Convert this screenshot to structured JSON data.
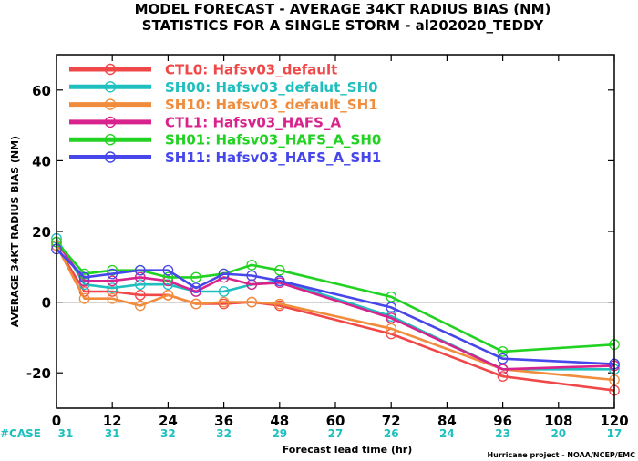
{
  "chart_data": {
    "type": "line",
    "title": "MODEL FORECAST - AVERAGE 34KT RADIUS BIAS (NM)",
    "subtitle": "STATISTICS FOR A SINGLE STORM - al202020_TEDDY",
    "xlabel": "Forecast lead time (hr)",
    "ylabel": "AVERAGE 34KT RADIUS BIAS (NM)",
    "xlim": [
      0,
      120
    ],
    "ylim": [
      -30,
      70
    ],
    "xticks": [
      0,
      12,
      24,
      36,
      48,
      60,
      72,
      84,
      96,
      108,
      120
    ],
    "yticks": [
      -20,
      0,
      20,
      40,
      60
    ],
    "zero_line": true,
    "legend_position": "top-left",
    "case_label": "#CASE",
    "case_counts": [
      {
        "x": 0,
        "label": "31"
      },
      {
        "x": 12,
        "label": "31"
      },
      {
        "x": 24,
        "label": "32"
      },
      {
        "x": 36,
        "label": "32"
      },
      {
        "x": 48,
        "label": "29"
      },
      {
        "x": 60,
        "label": "27"
      },
      {
        "x": 72,
        "label": "26"
      },
      {
        "x": 84,
        "label": "24"
      },
      {
        "x": 96,
        "label": "23"
      },
      {
        "x": 108,
        "label": "20"
      },
      {
        "x": 120,
        "label": "17"
      }
    ],
    "credit": "Hurricane project - NOAA/NCEP/EMC",
    "series": [
      {
        "name": "CTL0: Hafsv03_default",
        "color": "#f04848",
        "x": [
          0,
          6,
          12,
          18,
          24,
          30,
          36,
          42,
          48,
          72,
          96,
          120
        ],
        "y": [
          16,
          3,
          3,
          2,
          2,
          -0.5,
          -0.5,
          0,
          -1,
          -9,
          -21,
          -25
        ]
      },
      {
        "name": "SH00: Hafsv03_defalut_SH0",
        "color": "#1fbfbf",
        "x": [
          0,
          6,
          12,
          18,
          24,
          30,
          36,
          42,
          48,
          72,
          96,
          120
        ],
        "y": [
          18,
          5,
          4,
          5,
          5,
          3,
          3,
          5,
          6,
          -4,
          -19,
          -19
        ]
      },
      {
        "name": "SH10: Hafsv03_default_SH1",
        "color": "#f08c3c",
        "x": [
          0,
          6,
          12,
          18,
          24,
          30,
          36,
          42,
          48,
          72,
          96,
          120
        ],
        "y": [
          16,
          1,
          1,
          -1,
          2,
          -0.5,
          0,
          0,
          -0.5,
          -7.5,
          -19,
          -22
        ]
      },
      {
        "name": "CTL1: Hafsv03_HAFS_A",
        "color": "#d8238c",
        "x": [
          0,
          6,
          12,
          18,
          24,
          30,
          36,
          42,
          48,
          72,
          96,
          120
        ],
        "y": [
          17,
          6,
          6,
          7,
          6,
          3,
          7,
          5,
          5.5,
          -4.5,
          -19,
          -18
        ]
      },
      {
        "name": "SH01: Hafsv03_HAFS_A_SH0",
        "color": "#22d222",
        "x": [
          0,
          6,
          12,
          18,
          24,
          30,
          36,
          42,
          48,
          72,
          96,
          120
        ],
        "y": [
          17,
          8,
          9,
          9,
          7,
          7,
          8,
          10.5,
          9,
          1.5,
          -14,
          -12
        ]
      },
      {
        "name": "SH11: Hafsv03_HAFS_A_SH1",
        "color": "#4646ea",
        "x": [
          0,
          6,
          12,
          18,
          24,
          30,
          36,
          42,
          48,
          72,
          96,
          120
        ],
        "y": [
          15,
          7,
          8,
          9,
          9,
          4,
          8,
          7.5,
          6,
          -1.5,
          -16,
          -17.5
        ]
      }
    ]
  }
}
